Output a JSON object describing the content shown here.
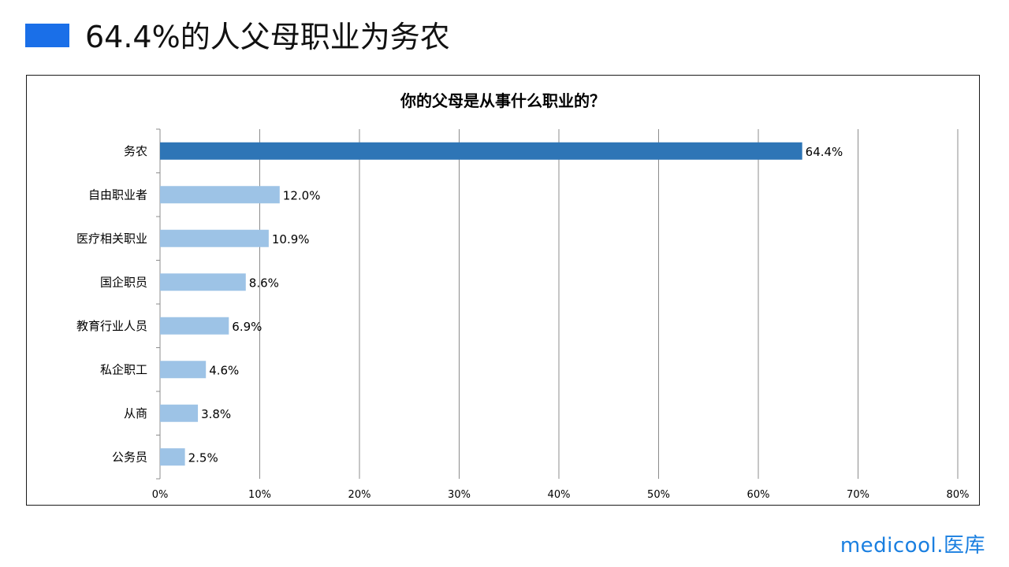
{
  "slide": {
    "title": "64.4%的人父母职业为务农",
    "accent_color": "#1a6fe8"
  },
  "brand": {
    "name": "medicool",
    "separator": ".",
    "name_cn": "医库",
    "color": "#1a7fe0"
  },
  "chart_data": {
    "type": "bar",
    "orientation": "horizontal",
    "title": "你的父母是从事什么职业的？",
    "categories": [
      "务农",
      "自由职业者",
      "医疗相关职业",
      "国企职员",
      "教育行业人员",
      "私企职工",
      "从商",
      "公务员"
    ],
    "values": [
      64.4,
      12.0,
      10.9,
      8.6,
      6.9,
      4.6,
      3.8,
      2.5
    ],
    "value_labels": [
      "64.4%",
      "12.0%",
      "10.9%",
      "8.6%",
      "6.9%",
      "4.6%",
      "3.8%",
      "2.5%"
    ],
    "xlim": [
      0,
      80
    ],
    "xticks": [
      0,
      10,
      20,
      30,
      40,
      50,
      60,
      70,
      80
    ],
    "xtick_labels": [
      "0%",
      "10%",
      "20%",
      "30%",
      "40%",
      "50%",
      "60%",
      "70%",
      "80%"
    ],
    "grid": true,
    "highlight_color": "#2e75b6",
    "bar_color": "#9dc3e6"
  }
}
